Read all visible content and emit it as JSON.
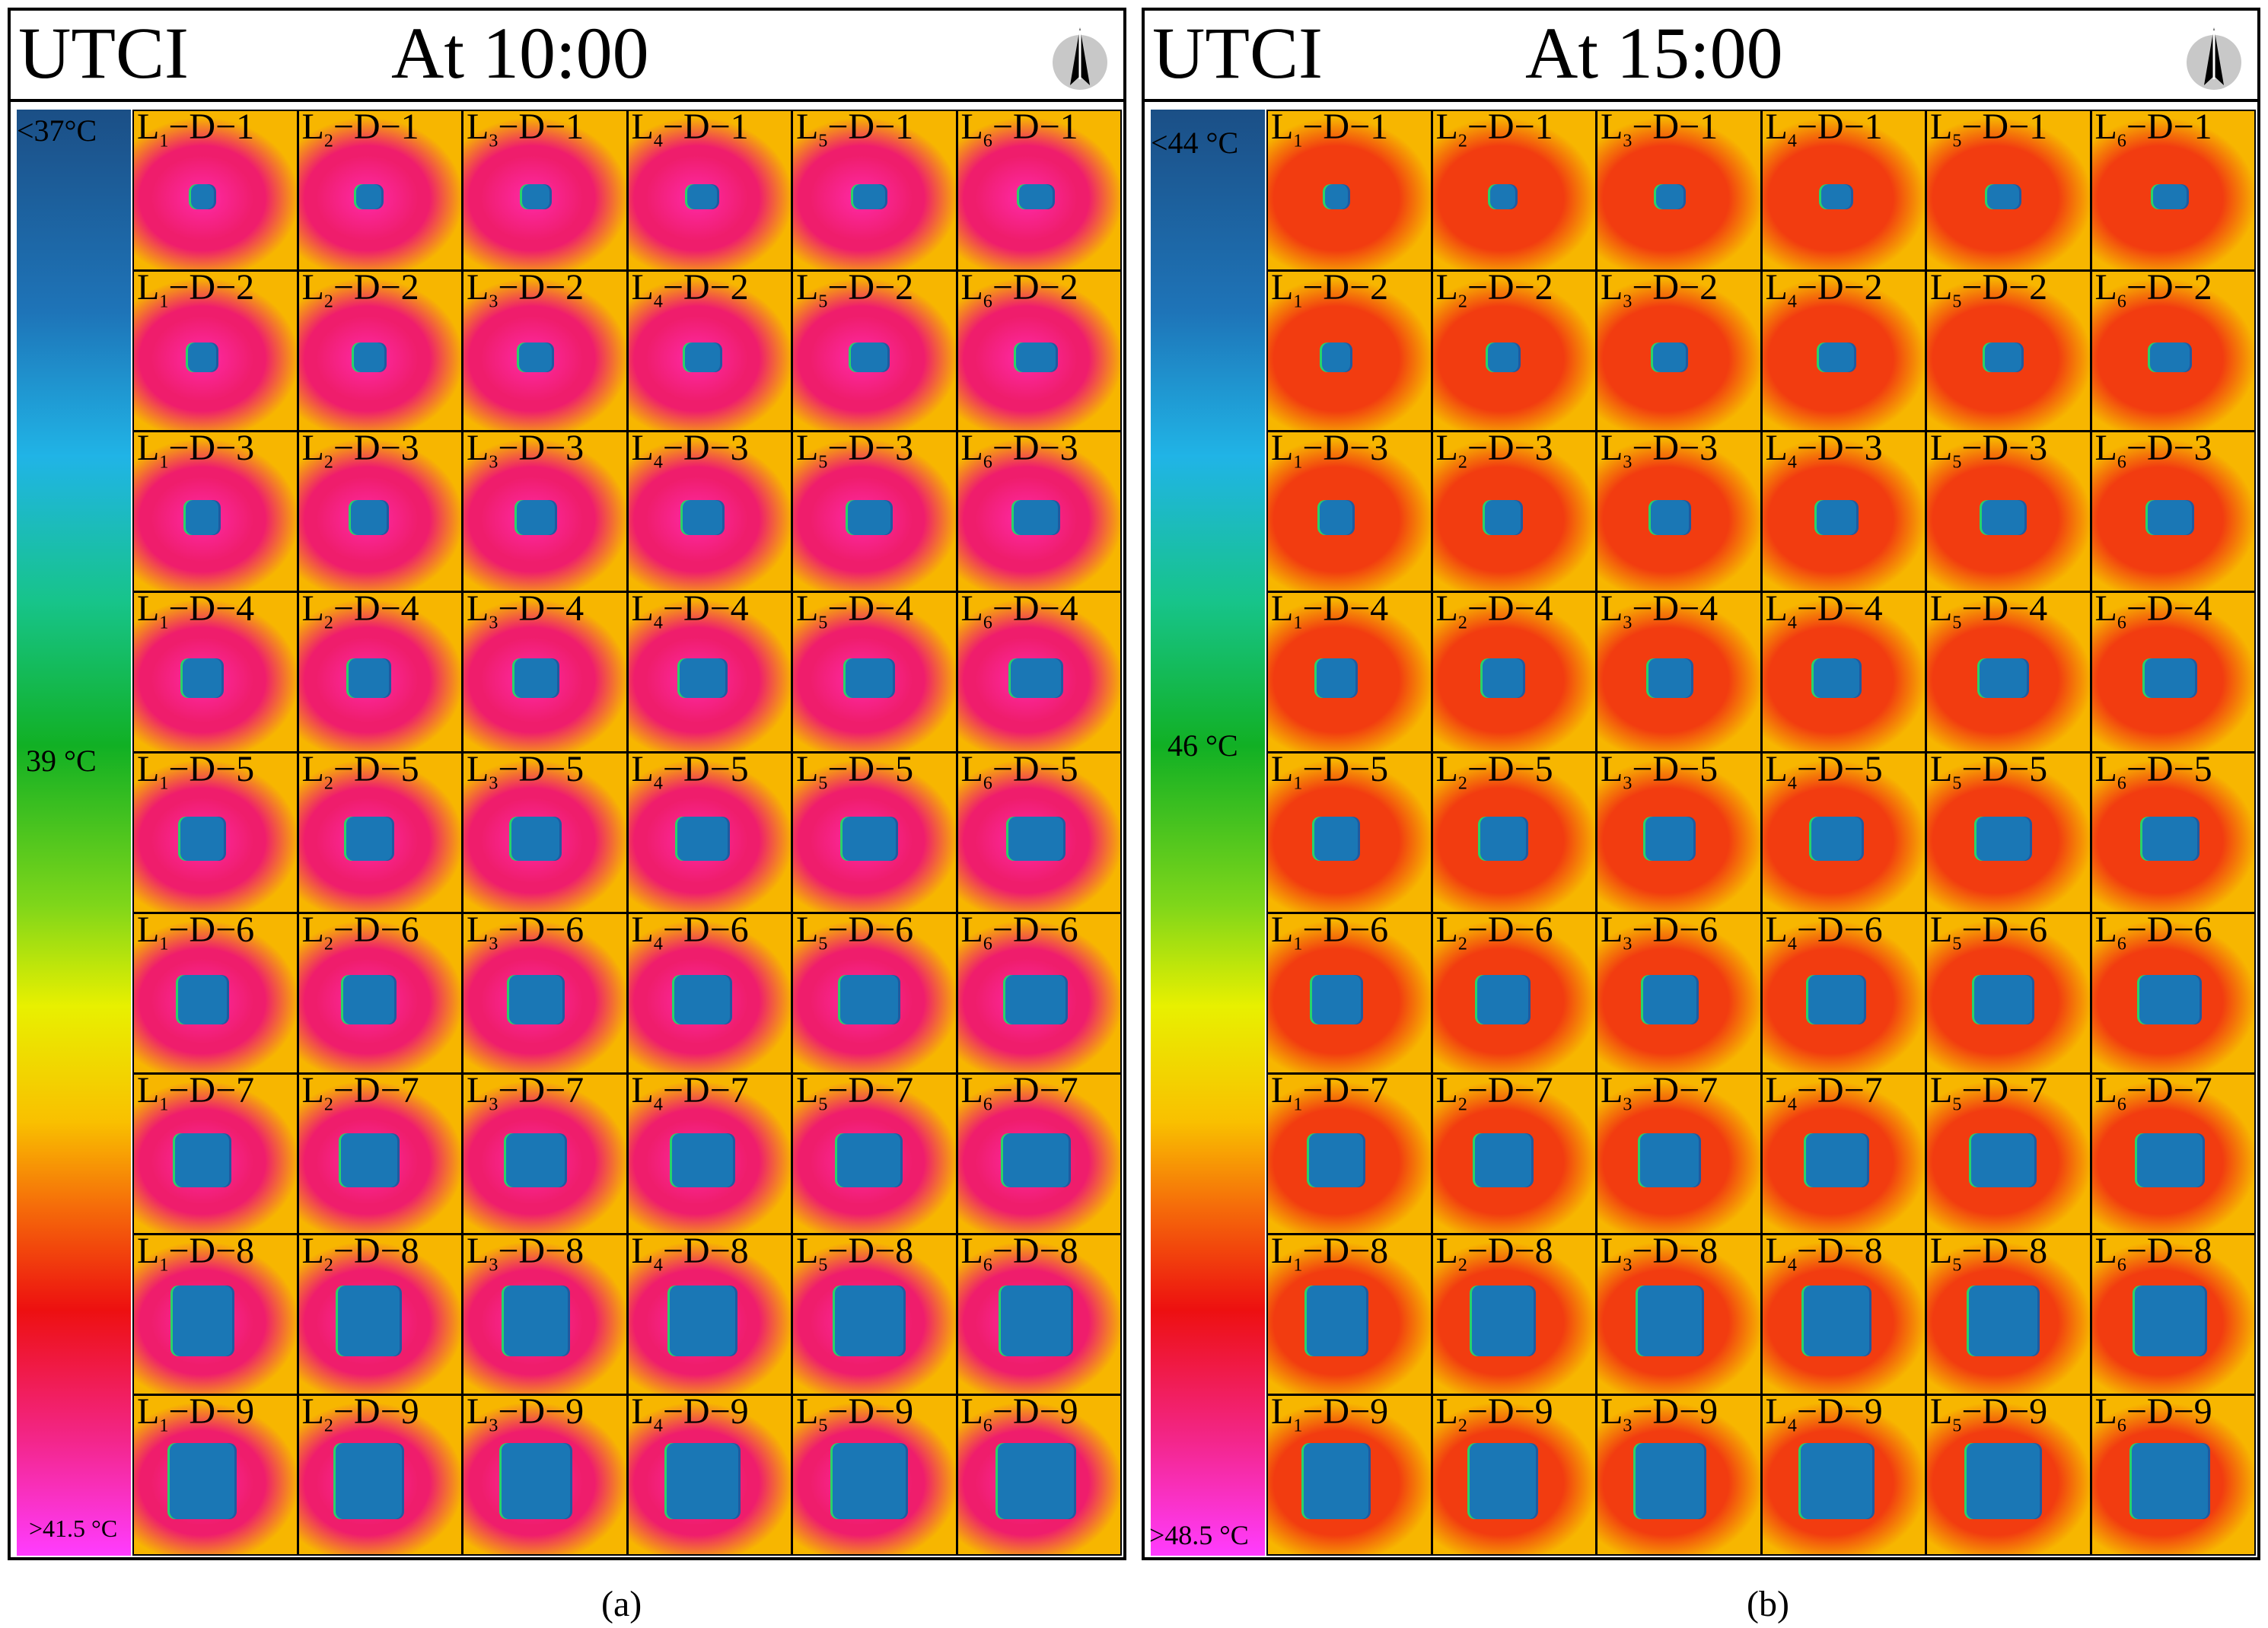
{
  "chart_data": [
    {
      "type": "heatmap",
      "panel": "(a)",
      "title": "UTCI",
      "time": "At 10:00",
      "legend": {
        "min_label": "<37°C",
        "mid_label": "39 °C",
        "max_label": ">41.5 °C",
        "min": 37,
        "mid": 39,
        "max": 41.5
      },
      "rows": [
        "D−1",
        "D−2",
        "D−3",
        "D−4",
        "D−5",
        "D−6",
        "D−7",
        "D−8",
        "D−9"
      ],
      "cols": [
        "L1",
        "L2",
        "L3",
        "L4",
        "L5",
        "L6"
      ]
    },
    {
      "type": "heatmap",
      "panel": "(b)",
      "title": "UTCI",
      "time": "At 15:00",
      "legend": {
        "min_label": "<44 °C",
        "mid_label": "46 °C",
        "max_label": ">48.5 °C",
        "min": 44,
        "mid": 46,
        "max": 48.5
      },
      "rows": [
        "D−1",
        "D−2",
        "D−3",
        "D−4",
        "D−5",
        "D−6",
        "D−7",
        "D−8",
        "D−9"
      ],
      "cols": [
        "L1",
        "L2",
        "L3",
        "L4",
        "L5",
        "L6"
      ]
    }
  ],
  "panels": [
    {
      "title": "UTCI",
      "time": "At 10:00",
      "caption": "(a)",
      "legend_min": "<37°C",
      "legend_mid": "39 °C",
      "legend_max": ">41.5 °C"
    },
    {
      "title": "UTCI",
      "time": "At 15:00",
      "caption": "(b)",
      "legend_min": "<44 °C",
      "legend_mid": "46 °C",
      "legend_max": ">48.5 °C"
    }
  ],
  "colors": {
    "morning_field": "#ef1d6c",
    "morning_hot": "#ff2aa8",
    "afternoon_field": "#f23c10",
    "periphery": "#f7b600",
    "building": "#1a77b5",
    "building_edge": "#29d36a"
  },
  "icons": {
    "north_arrow": "north-arrow-icon"
  }
}
